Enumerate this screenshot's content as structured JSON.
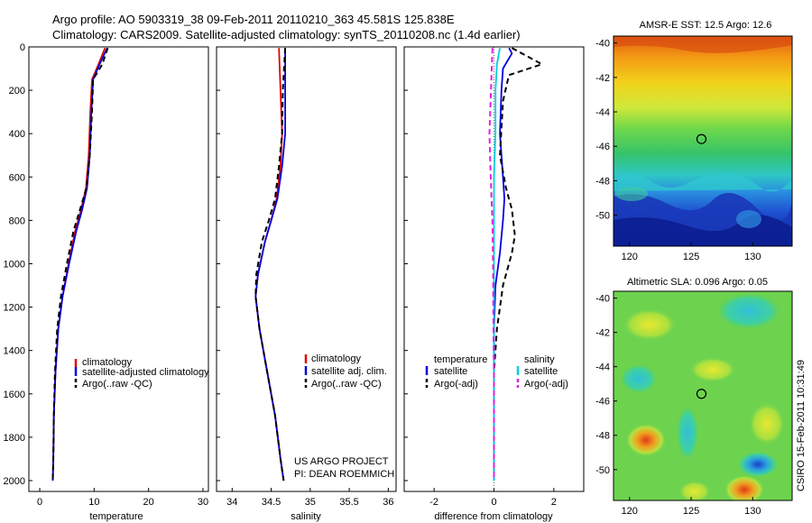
{
  "titles": {
    "line1": "Argo profile: AO 5903319_38 09-Feb-2011 20110210_363 45.581S 125.838E",
    "line2": "Climatology: CARS2009. Satellite-adjusted climatology: synTS_20110208.nc (1.4d earlier)"
  },
  "legends": {
    "temperature": [
      "climatology",
      "satellite-adjusted climatology",
      "Argo(..raw -QC)"
    ],
    "salinity": [
      "climatology",
      "satellite adj. clim.",
      "Argo(..raw -QC)"
    ],
    "difference": {
      "temp_header": "temperature",
      "temp_items": [
        "satellite",
        "Argo(-adj)"
      ],
      "sal_header": "salinity",
      "sal_items": [
        "satellite",
        "Argo(-adj)"
      ]
    }
  },
  "credits": {
    "project": "US ARGO PROJECT",
    "pi": "PI: DEAN ROEMMICH",
    "stamp": "CSIRO 15-Feb-2011 10:31:49"
  },
  "chart_data": [
    {
      "type": "line",
      "title": "",
      "xlabel": "temperature",
      "ylabel": "",
      "xlim": [
        -2,
        31
      ],
      "ylim": [
        2050,
        0
      ],
      "xticks": [
        "0",
        "10",
        "20",
        "30"
      ],
      "xtick_values": [
        0,
        10,
        20,
        30
      ],
      "yticks": [
        "0",
        "200",
        "400",
        "600",
        "800",
        "1000",
        "1200",
        "1400",
        "1600",
        "1800",
        "2000"
      ],
      "ytick_values": [
        0,
        200,
        400,
        600,
        800,
        1000,
        1200,
        1400,
        1600,
        1800,
        2000
      ],
      "series": [
        {
          "name": "climatology",
          "color": "#e00000",
          "style": "solid",
          "x": [
            12.0,
            10.8,
            9.6,
            9.3,
            9.0,
            8.5,
            7.6,
            6.5,
            5.3,
            4.2,
            3.4,
            2.9,
            2.6,
            2.5,
            2.4
          ],
          "y": [
            5,
            80,
            150,
            300,
            500,
            650,
            750,
            850,
            1000,
            1150,
            1300,
            1500,
            1700,
            1900,
            2000
          ]
        },
        {
          "name": "satellite-adjusted climatology",
          "color": "#0000e0",
          "style": "solid",
          "x": [
            12.4,
            11.0,
            9.8,
            9.5,
            9.2,
            8.7,
            7.8,
            6.7,
            5.4,
            4.2,
            3.4,
            2.9,
            2.6,
            2.5,
            2.4
          ],
          "y": [
            5,
            80,
            150,
            300,
            500,
            650,
            750,
            850,
            1000,
            1150,
            1300,
            1500,
            1700,
            1900,
            2000
          ]
        },
        {
          "name": "Argo(..raw -QC)",
          "color": "#000000",
          "style": "dashed",
          "x": [
            12.5,
            11.5,
            9.8,
            9.6,
            9.2,
            8.6,
            7.4,
            6.2,
            5.0,
            3.9,
            3.2,
            2.8,
            2.6,
            2.5,
            2.4
          ],
          "y": [
            5,
            80,
            150,
            300,
            500,
            650,
            750,
            850,
            1000,
            1150,
            1300,
            1500,
            1700,
            1900,
            2000
          ]
        }
      ]
    },
    {
      "type": "line",
      "title": "",
      "xlabel": "salinity",
      "ylabel": "",
      "xlim": [
        33.8,
        36.1
      ],
      "ylim": [
        2050,
        0
      ],
      "xticks": [
        "34",
        "34.5",
        "35",
        "35.5",
        "36"
      ],
      "xtick_values": [
        34,
        34.5,
        35,
        35.5,
        36
      ],
      "series": [
        {
          "name": "climatology",
          "color": "#e00000",
          "style": "solid",
          "x": [
            34.6,
            34.62,
            34.64,
            34.62,
            34.57,
            34.5,
            34.42,
            34.33,
            34.3,
            34.35,
            34.45,
            34.55,
            34.62,
            34.66
          ],
          "y": [
            5,
            200,
            400,
            550,
            700,
            800,
            900,
            1050,
            1150,
            1300,
            1500,
            1700,
            1900,
            2000
          ]
        },
        {
          "name": "satellite adj. clim.",
          "color": "#0000e0",
          "style": "solid",
          "x": [
            34.68,
            34.68,
            34.68,
            34.64,
            34.58,
            34.5,
            34.42,
            34.33,
            34.3,
            34.35,
            34.45,
            34.55,
            34.62,
            34.66
          ],
          "y": [
            5,
            200,
            400,
            550,
            700,
            800,
            900,
            1050,
            1150,
            1300,
            1500,
            1700,
            1900,
            2000
          ]
        },
        {
          "name": "Argo(..raw -QC)",
          "color": "#000000",
          "style": "dashed",
          "x": [
            34.68,
            34.65,
            34.64,
            34.6,
            34.55,
            34.47,
            34.38,
            34.31,
            34.3,
            34.35,
            34.45,
            34.55,
            34.62,
            34.66
          ],
          "y": [
            5,
            200,
            400,
            550,
            700,
            800,
            900,
            1050,
            1150,
            1300,
            1500,
            1700,
            1900,
            2000
          ]
        }
      ]
    },
    {
      "type": "line",
      "title": "",
      "xlabel": "difference from climatology",
      "ylabel": "",
      "xlim": [
        -3,
        3
      ],
      "ylim": [
        2050,
        0
      ],
      "xticks": [
        "-2",
        "0",
        "2"
      ],
      "xtick_values": [
        -2,
        0,
        2
      ],
      "series": [
        {
          "name": "temperature satellite",
          "color": "#0000e0",
          "style": "solid",
          "x": [
            0.5,
            0.6,
            0.3,
            0.25,
            0.2,
            0.3,
            0.35,
            0.3,
            0.2,
            0.05,
            0.0,
            0.0,
            0.0,
            0.0
          ],
          "y": [
            5,
            30,
            100,
            200,
            400,
            600,
            700,
            800,
            950,
            1100,
            1300,
            1500,
            1800,
            2000
          ]
        },
        {
          "name": "temperature Argo(-adj)",
          "color": "#000000",
          "style": "dashed",
          "x": [
            0.6,
            1.6,
            0.5,
            0.3,
            0.2,
            0.4,
            0.6,
            0.7,
            0.6,
            0.3,
            0.1,
            0.0,
            0.0,
            0.0
          ],
          "y": [
            5,
            80,
            130,
            250,
            500,
            650,
            750,
            870,
            950,
            1100,
            1300,
            1500,
            1800,
            2000
          ]
        },
        {
          "name": "salinity satellite",
          "color": "#00d0e0",
          "style": "solid",
          "x": [
            0.2,
            0.1,
            0.05,
            0.05,
            0.0,
            0.0,
            0.0,
            0.0,
            0.0,
            0.0,
            0.0
          ],
          "y": [
            5,
            80,
            200,
            400,
            600,
            800,
            1000,
            1200,
            1500,
            1800,
            2000
          ]
        },
        {
          "name": "salinity Argo(-adj)",
          "color": "#e020e0",
          "style": "dashed",
          "x": [
            -0.05,
            -0.1,
            -0.15,
            -0.12,
            -0.08,
            -0.05,
            -0.03,
            -0.02,
            0.0,
            0.0,
            0.0
          ],
          "y": [
            5,
            200,
            400,
            550,
            700,
            800,
            1000,
            1200,
            1500,
            1800,
            2000
          ]
        }
      ]
    },
    {
      "type": "heatmap",
      "title": "AMSR-E SST: 12.5 Argo: 12.6",
      "xlim": [
        118.7,
        133.2
      ],
      "ylim": [
        -51.8,
        -39.6
      ],
      "xticks": [
        "120",
        "125",
        "130"
      ],
      "xtick_values": [
        120,
        125,
        130
      ],
      "yticks": [
        "-40",
        "-42",
        "-44",
        "-46",
        "-48",
        "-50"
      ],
      "ytick_values": [
        -40,
        -42,
        -44,
        -46,
        -48,
        -50
      ],
      "marker": {
        "lon": 125.838,
        "lat": -45.581
      }
    },
    {
      "type": "heatmap",
      "title": "Altimetric SLA: 0.096 Argo: 0.05",
      "xlim": [
        118.7,
        133.2
      ],
      "ylim": [
        -51.8,
        -39.6
      ],
      "xticks": [
        "120",
        "125",
        "130"
      ],
      "xtick_values": [
        120,
        125,
        130
      ],
      "yticks": [
        "-40",
        "-42",
        "-44",
        "-46",
        "-48",
        "-50"
      ],
      "ytick_values": [
        -40,
        -42,
        -44,
        -46,
        -48,
        -50
      ],
      "marker": {
        "lon": 125.838,
        "lat": -45.581
      }
    }
  ]
}
